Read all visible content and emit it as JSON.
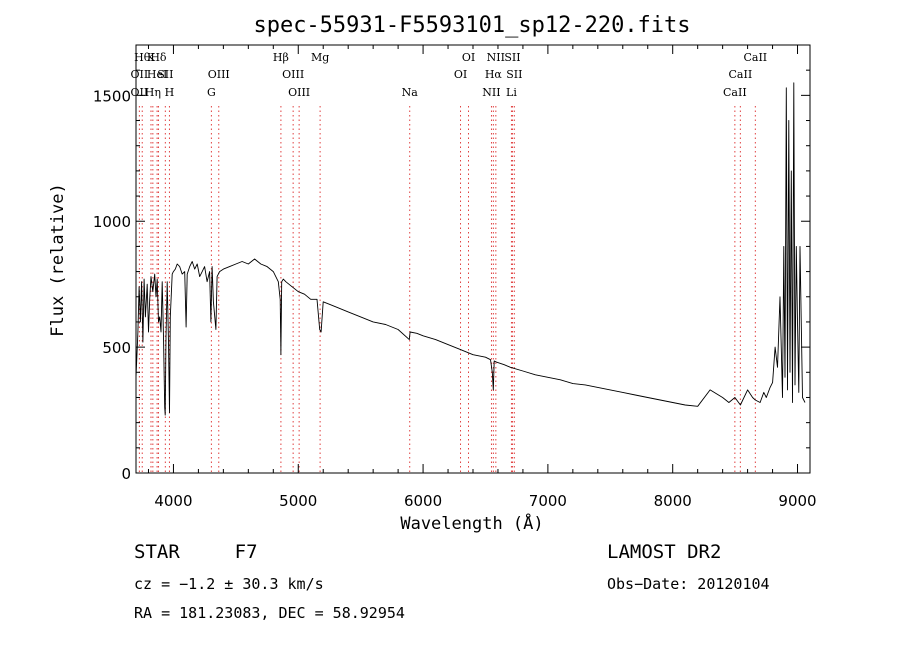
{
  "chart_data": {
    "type": "line",
    "title": "spec-55931-F5593101_sp12-220.fits",
    "xlabel": "Wavelength (Å)",
    "ylabel": "Flux (relative)",
    "xlim": [
      3700,
      9100
    ],
    "ylim": [
      0,
      1700
    ],
    "xticks": [
      4000,
      5000,
      6000,
      7000,
      8000,
      9000
    ],
    "yticks": [
      0,
      500,
      1000,
      1500
    ],
    "grid": false,
    "series": [
      {
        "x": [
          3700,
          3715,
          3725,
          3735,
          3745,
          3755,
          3765,
          3775,
          3790,
          3800,
          3810,
          3820,
          3835,
          3850,
          3860,
          3870,
          3880,
          3890,
          3900,
          3910,
          3920,
          3930,
          3934,
          3940,
          3950,
          3960,
          3968,
          3975,
          3990,
          4000,
          4015,
          4030,
          4050,
          4070,
          4090,
          4101,
          4110,
          4130,
          4150,
          4170,
          4190,
          4210,
          4230,
          4250,
          4270,
          4290,
          4300,
          4310,
          4320,
          4340,
          4350,
          4370,
          4400,
          4450,
          4500,
          4550,
          4600,
          4650,
          4700,
          4750,
          4800,
          4840,
          4855,
          4861,
          4867,
          4880,
          4900,
          4950,
          5000,
          5050,
          5100,
          5150,
          5172,
          5183,
          5200,
          5250,
          5300,
          5400,
          5500,
          5600,
          5700,
          5800,
          5890,
          5896,
          5950,
          6000,
          6100,
          6200,
          6300,
          6400,
          6500,
          6540,
          6555,
          6563,
          6570,
          6590,
          6650,
          6700,
          6800,
          6900,
          7000,
          7100,
          7200,
          7300,
          7400,
          7500,
          7600,
          7700,
          7800,
          7900,
          8000,
          8100,
          8200,
          8300,
          8400,
          8450,
          8498,
          8542,
          8600,
          8640,
          8662,
          8700,
          8730,
          8750,
          8780,
          8800,
          8820,
          8840,
          8860,
          8880,
          8890,
          8900,
          8910,
          8920,
          8930,
          8940,
          8950,
          8960,
          8970,
          8980,
          8990,
          9000,
          9010,
          9020,
          9040,
          9060
        ],
        "values": [
          380,
          560,
          740,
          600,
          760,
          520,
          770,
          620,
          750,
          560,
          690,
          780,
          720,
          790,
          700,
          770,
          600,
          620,
          560,
          760,
          540,
          260,
          230,
          540,
          760,
          520,
          240,
          620,
          790,
          800,
          810,
          830,
          820,
          790,
          800,
          580,
          790,
          820,
          840,
          810,
          830,
          780,
          800,
          820,
          760,
          800,
          600,
          820,
          680,
          570,
          780,
          800,
          810,
          820,
          830,
          840,
          830,
          850,
          830,
          820,
          800,
          760,
          690,
          470,
          760,
          770,
          760,
          740,
          720,
          710,
          690,
          690,
          570,
          560,
          680,
          670,
          660,
          640,
          620,
          600,
          590,
          570,
          530,
          560,
          555,
          545,
          530,
          510,
          490,
          470,
          460,
          450,
          400,
          330,
          445,
          440,
          430,
          420,
          405,
          390,
          380,
          370,
          355,
          350,
          340,
          330,
          320,
          310,
          300,
          290,
          280,
          270,
          265,
          330,
          300,
          280,
          300,
          270,
          330,
          300,
          290,
          280,
          320,
          300,
          340,
          360,
          500,
          420,
          700,
          300,
          900,
          380,
          1530,
          330,
          1400,
          400,
          1200,
          280,
          1550,
          350,
          900,
          600,
          320,
          900,
          300,
          280
        ]
      }
    ],
    "line_ids": [
      {
        "wl": 3750,
        "label": "Hθ",
        "row": 0
      },
      {
        "wl": 3820,
        "label": "K",
        "row": 0
      },
      {
        "wl": 3880,
        "label": "Hδ",
        "row": 0
      },
      {
        "wl": 4861,
        "label": "Hβ",
        "row": 0
      },
      {
        "wl": 5175,
        "label": "Mg",
        "row": 0
      },
      {
        "wl": 6364,
        "label": "OI",
        "row": 0
      },
      {
        "wl": 6583,
        "label": "NII",
        "row": 0
      },
      {
        "wl": 6716,
        "label": "SII",
        "row": 0
      },
      {
        "wl": 8662,
        "label": "CaII",
        "row": 0
      },
      {
        "wl": 3727,
        "label": "OII",
        "row": 1
      },
      {
        "wl": 3869,
        "label": "HeI",
        "row": 1
      },
      {
        "wl": 3935,
        "label": "SII",
        "row": 1
      },
      {
        "wl": 4363,
        "label": "OIII",
        "row": 1
      },
      {
        "wl": 4959,
        "label": "OIII",
        "row": 1
      },
      {
        "wl": 6300,
        "label": "OI",
        "row": 1
      },
      {
        "wl": 6563,
        "label": "Hα",
        "row": 1
      },
      {
        "wl": 6731,
        "label": "SII",
        "row": 1
      },
      {
        "wl": 8542,
        "label": "CaII",
        "row": 1
      },
      {
        "wl": 3727,
        "label": "OII",
        "row": 2
      },
      {
        "wl": 3835,
        "label": "Hη",
        "row": 2
      },
      {
        "wl": 3968,
        "label": "H",
        "row": 2
      },
      {
        "wl": 4304,
        "label": "G",
        "row": 2
      },
      {
        "wl": 5007,
        "label": "OIII",
        "row": 2
      },
      {
        "wl": 5893,
        "label": "Na",
        "row": 2
      },
      {
        "wl": 6548,
        "label": "NII",
        "row": 2
      },
      {
        "wl": 6708,
        "label": "Li",
        "row": 2
      },
      {
        "wl": 8498,
        "label": "CaII",
        "row": 2
      }
    ]
  },
  "info": {
    "class_label": "STAR",
    "subclass": "F7",
    "survey": "LAMOST DR2",
    "cz": "cz = −1.2 ± 30.3 km/s",
    "obs_date": "Obs−Date: 20120104",
    "coords": "RA = 181.23083, DEC =  58.92954"
  },
  "colors": {
    "spectrum": "#000000",
    "line_markers": "#e04040",
    "axes": "#000000"
  }
}
